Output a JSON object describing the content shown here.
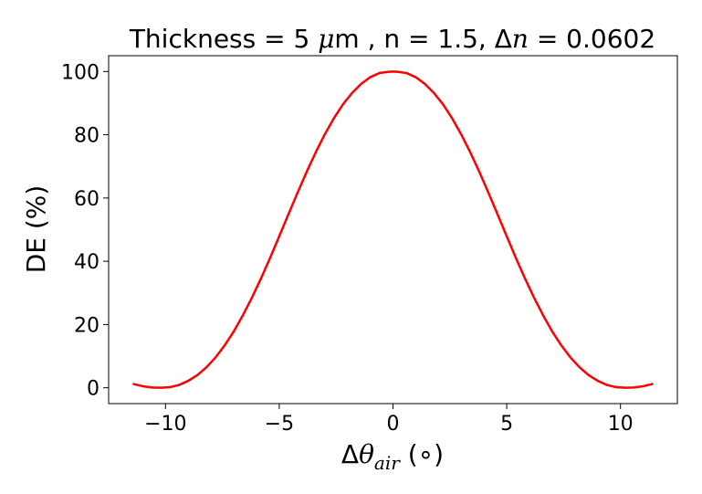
{
  "chart_data": {
    "type": "line",
    "title": {
      "prefix": "Thickness = 5 ",
      "mu": "μ",
      "unit": "m , n = 1.5, Δ",
      "n_sym": "n",
      "eq": " = 0.0602"
    },
    "xlabel": {
      "delta": "Δ",
      "theta": "θ",
      "sub": "air",
      "unit": " (∘)"
    },
    "ylabel": "DE  (%)",
    "xlim": [
      -12.5,
      12.5
    ],
    "ylim": [
      -5,
      105
    ],
    "xticks": [
      -10,
      -5,
      0,
      5,
      10
    ],
    "xtick_labels": [
      "−10",
      "−5",
      "0",
      "5",
      "10"
    ],
    "yticks": [
      0,
      20,
      40,
      60,
      80,
      100
    ],
    "ytick_labels": [
      "0",
      "20",
      "40",
      "60",
      "80",
      "100"
    ],
    "grid": false,
    "legend": "none",
    "series": [
      {
        "color": "#ff0000",
        "x": [
          -11.4,
          -11.0,
          -10.6,
          -10.2,
          -9.8,
          -9.4,
          -9.0,
          -8.6,
          -8.2,
          -7.8,
          -7.4,
          -7.0,
          -6.6,
          -6.2,
          -5.8,
          -5.4,
          -5.0,
          -4.6,
          -4.2,
          -3.8,
          -3.4,
          -3.0,
          -2.6,
          -2.2,
          -1.8,
          -1.4,
          -1.0,
          -0.6,
          -0.2,
          0.0,
          0.2,
          0.6,
          1.0,
          1.4,
          1.8,
          2.2,
          2.6,
          3.0,
          3.4,
          3.8,
          4.2,
          4.6,
          5.0,
          5.4,
          5.8,
          6.2,
          6.6,
          7.0,
          7.4,
          7.8,
          8.2,
          8.6,
          9.0,
          9.4,
          9.8,
          10.2,
          10.6,
          11.0,
          11.4
        ],
        "y": [
          1.2,
          0.5,
          0.1,
          0.0,
          0.2,
          0.9,
          2.2,
          4.0,
          6.5,
          9.6,
          13.4,
          17.8,
          22.9,
          28.5,
          34.6,
          41.1,
          47.9,
          54.8,
          61.6,
          68.2,
          74.4,
          80.1,
          85.2,
          89.6,
          93.2,
          96.1,
          98.2,
          99.5,
          99.9,
          100.0,
          99.9,
          99.5,
          98.2,
          96.1,
          93.2,
          89.6,
          85.2,
          80.1,
          74.4,
          68.2,
          61.6,
          54.8,
          47.9,
          41.1,
          34.6,
          28.5,
          22.9,
          17.8,
          13.4,
          9.6,
          6.5,
          4.0,
          2.2,
          0.9,
          0.2,
          0.0,
          0.1,
          0.5,
          1.2
        ]
      }
    ]
  }
}
